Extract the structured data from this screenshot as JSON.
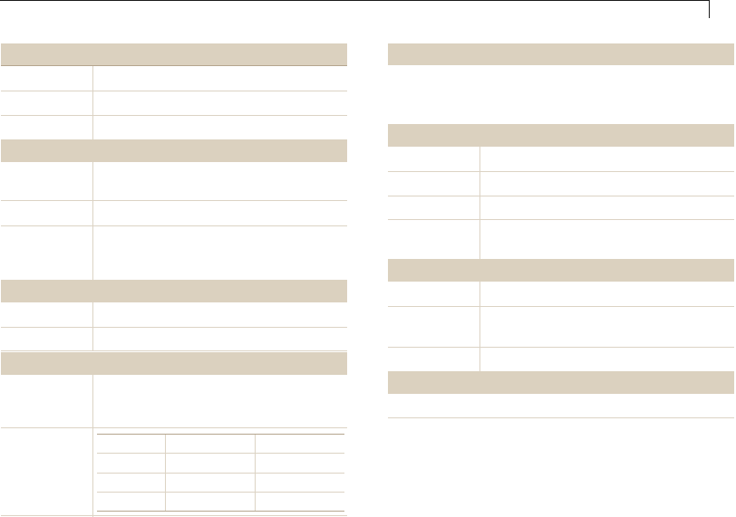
{
  "colors": {
    "header_fill": "#dbd1bf",
    "rule": "#dcd3c4",
    "rule_dark": "#b5a58e",
    "top_rule": "#1a1a1a"
  },
  "left_column": {
    "sections": 4
  },
  "right_column": {
    "sections": 4
  }
}
